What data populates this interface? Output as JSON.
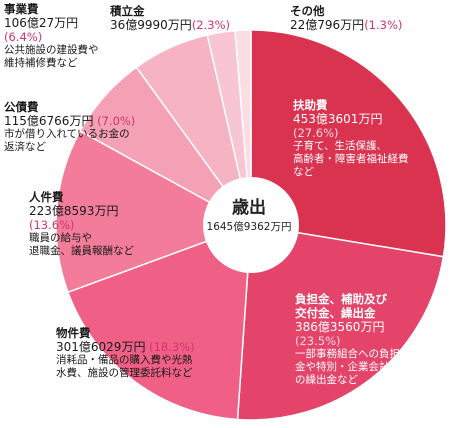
{
  "chart_data": {
    "type": "pie",
    "donut_center": {
      "title": "歳出",
      "total": "1645億9362万円"
    },
    "slices": [
      {
        "name": "扶助費",
        "amount": "453億3601万円",
        "percent_label": "(27.6%)",
        "value": 27.6,
        "desc": [
          "子育て、生活保護、",
          "高齢者・障害者福祉経費",
          "など"
        ],
        "color": "#d9334f"
      },
      {
        "name": "負担金、補助及び交付金、繰出金",
        "name_lines": [
          "負担金、補助及び",
          "交付金、繰出金"
        ],
        "amount": "386億3560万円",
        "percent_label": "(23.5%)",
        "value": 23.5,
        "desc": [
          "一部事務組合への負担",
          "金や特別・企業会計へ",
          "の繰出金など"
        ],
        "color": "#e4446a"
      },
      {
        "name": "物件費",
        "amount": "301億6029万円",
        "percent_label": "(18.3%)",
        "value": 18.3,
        "desc": [
          "消耗品・備品の購入費や光熱",
          "水費、施設の管理委託料など"
        ],
        "color": "#ef5f86"
      },
      {
        "name": "人件費",
        "amount": "223億8593万円",
        "percent_label": "(13.6%)",
        "value": 13.6,
        "desc": [
          "職員の給与や",
          "退職金、議員報酬など"
        ],
        "color": "#f27c9a"
      },
      {
        "name": "公債費",
        "amount": "115億6766万円",
        "percent_label": "(7.0%)",
        "value": 7.0,
        "desc": [
          "市が借り入れているお金の",
          "返済など"
        ],
        "color": "#f4a0b5"
      },
      {
        "name": "事業費",
        "amount": "106億27万円",
        "percent_label": "(6.4%)",
        "value": 6.4,
        "desc": [
          "公共施設の建設費や",
          "維持補修費など"
        ],
        "color": "#f6b3c4"
      },
      {
        "name": "積立金",
        "amount": "36億9990万円",
        "percent_label": "(2.3%)",
        "value": 2.3,
        "desc": [],
        "color": "#f8c6d2"
      },
      {
        "name": "その他",
        "amount": "22億796万円",
        "percent_label": "(1.3%)",
        "value": 1.3,
        "desc": [],
        "color": "#fbdde4"
      }
    ]
  }
}
